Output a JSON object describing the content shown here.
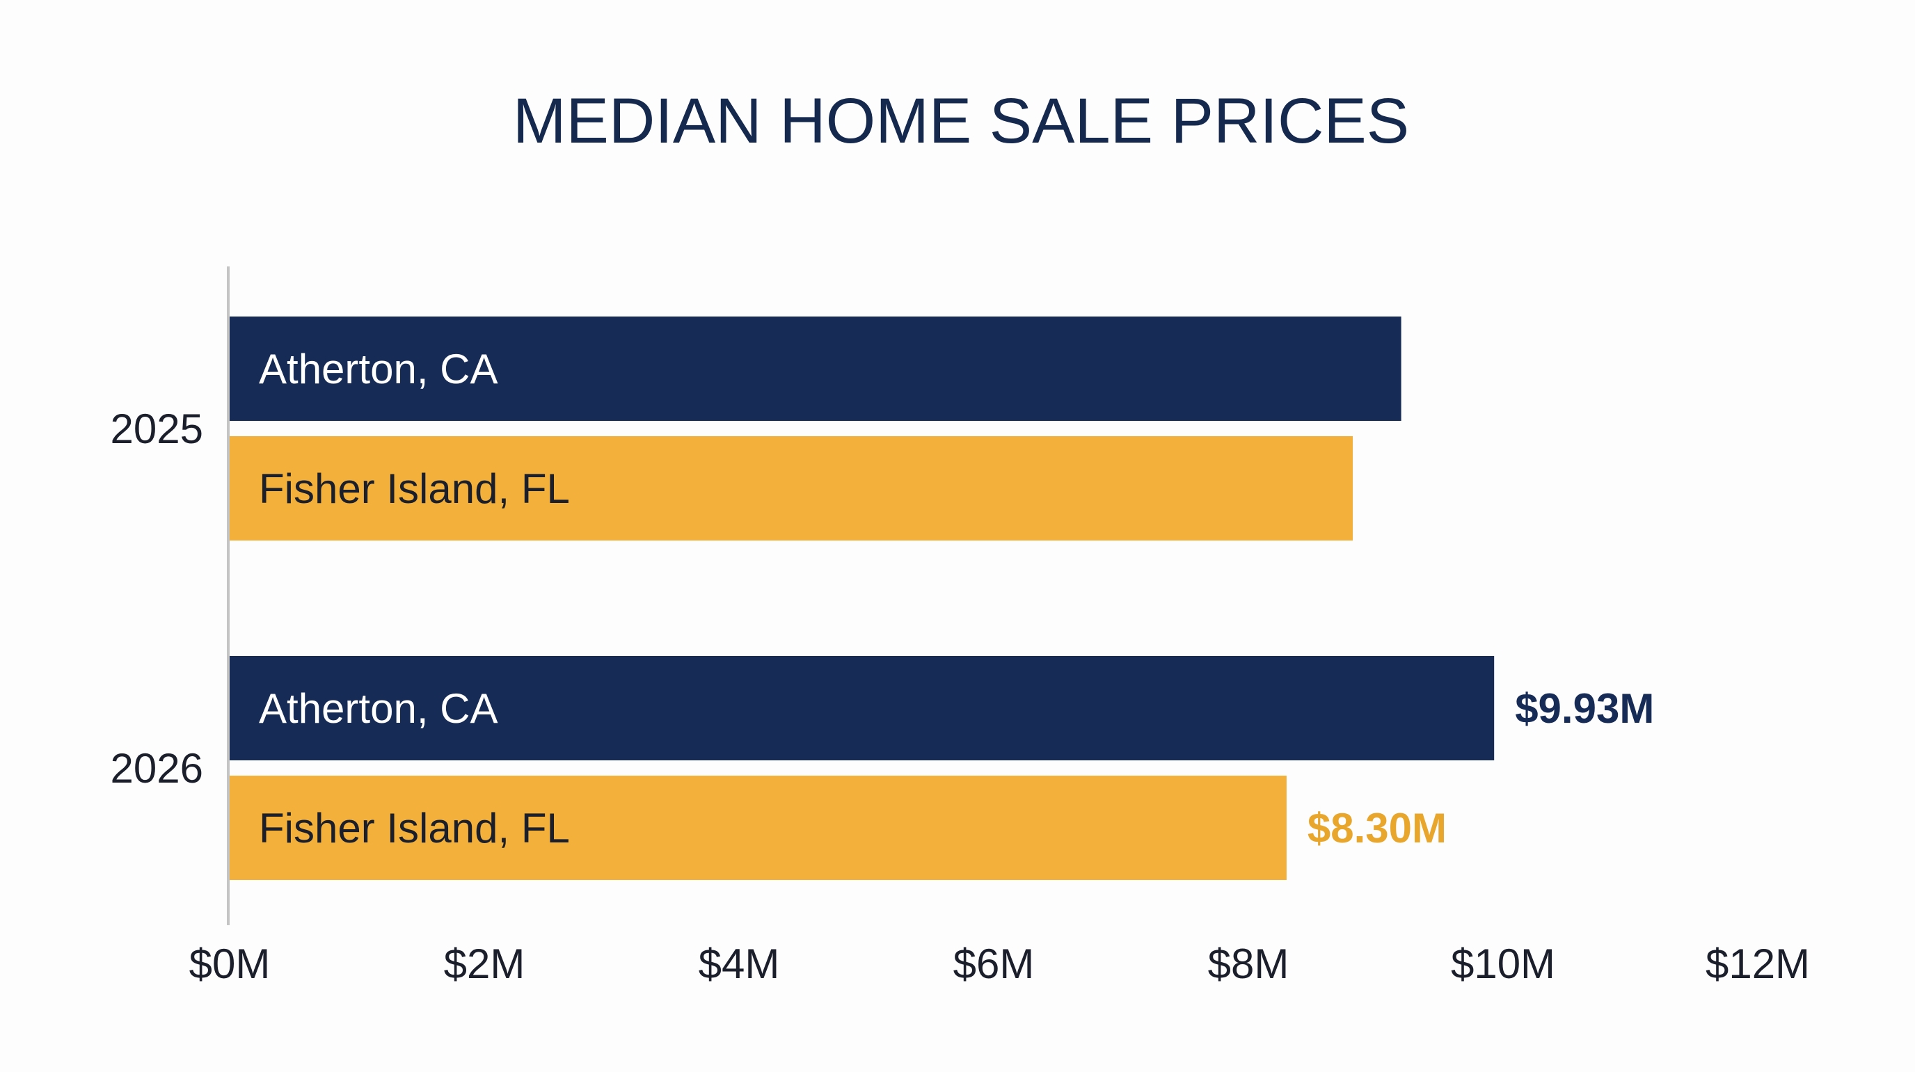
{
  "chart_data": {
    "type": "bar",
    "orientation": "horizontal",
    "title": "MEDIAN HOME SALE PRICES",
    "categories": [
      "2025",
      "2026"
    ],
    "xlabel": "",
    "ylabel": "",
    "xlim": [
      0,
      12
    ],
    "x_ticks": [
      "$0M",
      "$2M",
      "$4M",
      "$6M",
      "$8M",
      "$10M",
      "$12M"
    ],
    "grid": false,
    "legend": "none",
    "series": [
      {
        "bar_label": "Atherton, CA",
        "color": "#162b55",
        "label_color": "#ffffff",
        "values": [
          9.2,
          9.93
        ],
        "data_labels": [
          "",
          "$9.93M"
        ]
      },
      {
        "bar_label": "Fisher Island, FL",
        "color": "#f3b13c",
        "label_color": "#1b1f2b",
        "value_label_color": "#e9a62c",
        "values": [
          8.82,
          8.3
        ],
        "data_labels": [
          "",
          "$8.30M"
        ]
      }
    ]
  }
}
